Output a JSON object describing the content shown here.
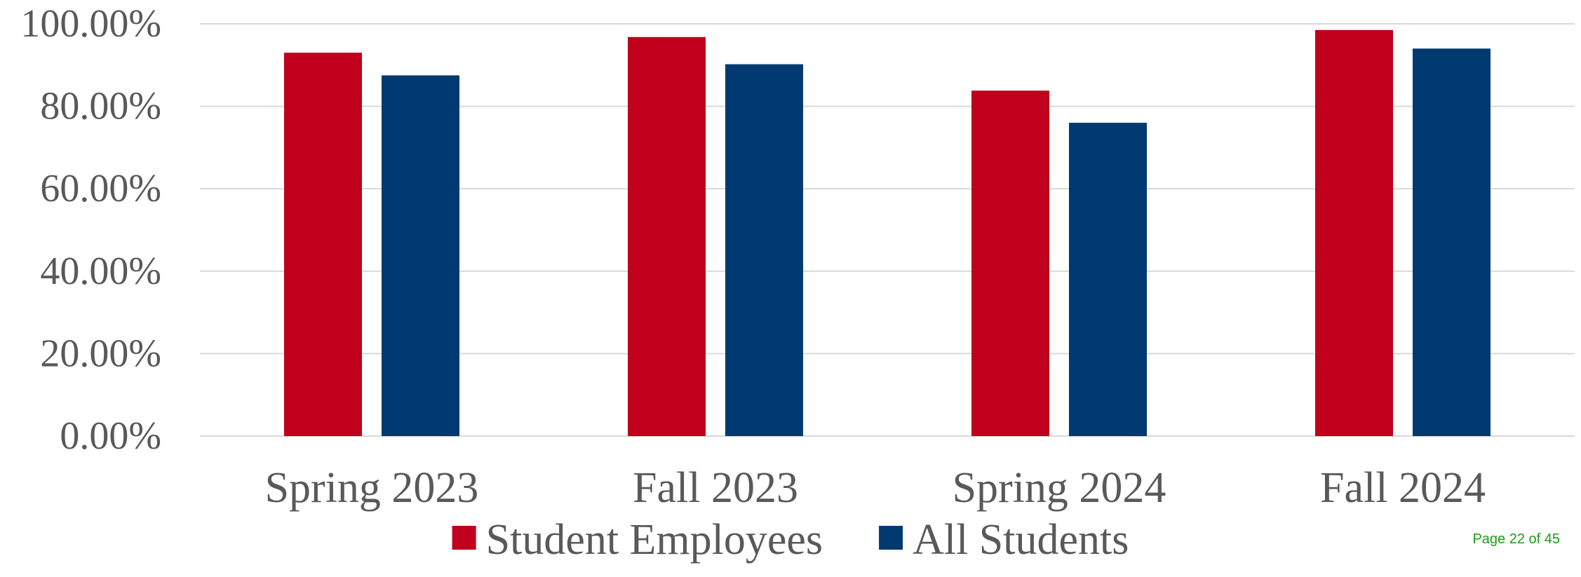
{
  "chart_data": {
    "type": "bar",
    "categories": [
      "Spring 2023",
      "Fall 2023",
      "Spring 2024",
      "Fall 2024"
    ],
    "series": [
      {
        "name": "Student Employees",
        "color": "#c0001c",
        "values": [
          93.0,
          96.8,
          83.8,
          98.5
        ]
      },
      {
        "name": "All Students",
        "color": "#003a70",
        "values": [
          87.5,
          90.2,
          76.0,
          94.0
        ]
      }
    ],
    "yticks": [
      "0.00%",
      "20.00%",
      "40.00%",
      "60.00%",
      "80.00%",
      "100.00%"
    ],
    "ylim": [
      0,
      100
    ],
    "grid": true,
    "legend_position": "bottom-center"
  },
  "footer": {
    "page_number": "Page 22 of 45"
  }
}
